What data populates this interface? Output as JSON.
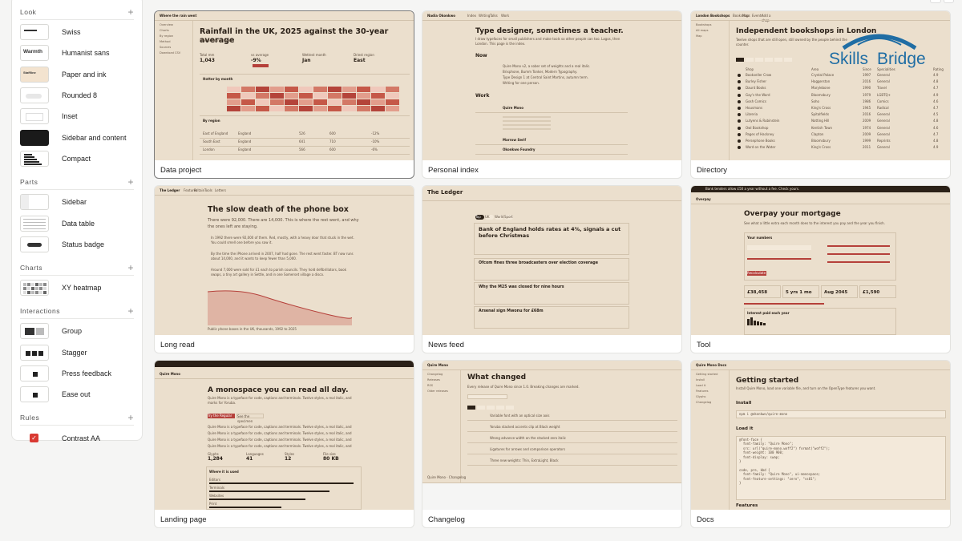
{
  "sidebar": {
    "look": {
      "title": "Look",
      "items": [
        "Swiss",
        "Humanist sans",
        "Paper and ink",
        "Rounded 8",
        "Inset",
        "Sidebar and content",
        "Compact"
      ],
      "thumb_text": [
        "",
        "Warmth",
        "Staffline",
        "",
        "",
        "",
        ""
      ]
    },
    "parts": {
      "title": "Parts",
      "items": [
        "Sidebar",
        "Data table",
        "Status badge"
      ]
    },
    "charts": {
      "title": "Charts",
      "items": [
        "XY heatmap"
      ]
    },
    "interactions": {
      "title": "Interactions",
      "items": [
        "Group",
        "Stagger",
        "Press feedback",
        "Ease out"
      ]
    },
    "rules": {
      "title": "Rules",
      "items": [
        "Contrast AA"
      ]
    }
  },
  "cards": [
    {
      "label": "Data project",
      "title": "Rainfall in the UK, 2025 against the 30-year average",
      "nav": "Where the rain went",
      "menu": [
        "Overview",
        "Charts",
        "By region",
        "Method",
        "Sources",
        "Download CSV"
      ],
      "stats": [
        {
          "k": "Total mm",
          "v": "1,043"
        },
        {
          "k": "vs average",
          "v": "-9%"
        },
        {
          "k": "Wettest month",
          "v": "Jan"
        },
        {
          "k": "Driest region",
          "v": "East"
        }
      ],
      "sub1": "Hotter by month",
      "sub2": "By region",
      "rows": [
        [
          "East of England",
          "England",
          "526",
          "600",
          "-12%"
        ],
        [
          "South East",
          "England",
          "641",
          "710",
          "-10%"
        ],
        [
          "London",
          "England",
          "566",
          "600",
          "-6%"
        ]
      ]
    },
    {
      "label": "Personal index",
      "title": "Type designer, sometimes a teacher.",
      "nav": "Nadia Okonkwo",
      "navtabs": [
        "Index",
        "Writing",
        "Talks",
        "Work"
      ],
      "intro": "I draw typefaces for small publishers and make tools so other people can too. Lagos, then London. This page is the index.",
      "h_now": "Now",
      "h_work": "Work",
      "now": [
        "Quire Mono v2, a sober set of weights and a real italic.",
        "Brixphone, Bumm Tonker, Modern Typography.",
        "Type Design 1 at Central Saint Martins, autumn term.",
        "Writing for one person."
      ],
      "work": [
        "Quire Mono",
        "Marrow Serif",
        "Okonkwo Foundry"
      ]
    },
    {
      "label": "Directory",
      "title": "Independent bookshops in London",
      "nav": "London Bookshops",
      "navtabs": [
        "Bookshops",
        "Map",
        "Events",
        "Add a shop"
      ],
      "menu": [
        "Bookshops",
        "All maps",
        "Map"
      ],
      "intro": "Twelve shops that are still open, still owned by the people behind the counter.",
      "cols": [
        "Shop",
        "Area",
        "Since",
        "Specialities",
        "Rating"
      ],
      "rows": [
        [
          "Bookseller Crow",
          "Crystal Palace",
          "1997",
          "General",
          "4.9"
        ],
        [
          "Burley Fisher",
          "Haggerston",
          "2016",
          "General",
          "4.8"
        ],
        [
          "Daunt Books",
          "Marylebone",
          "1990",
          "Travel",
          "4.7"
        ],
        [
          "Gay's the Word",
          "Bloomsbury",
          "1979",
          "LGBTQ+",
          "4.9"
        ],
        [
          "Gosh Comics",
          "Soho",
          "1986",
          "Comics",
          "4.6"
        ],
        [
          "Housmans",
          "King's Cross",
          "1945",
          "Radical",
          "4.7"
        ],
        [
          "Libreria",
          "Spitalfields",
          "2016",
          "General",
          "4.5"
        ],
        [
          "Lutyens & Rubinstein",
          "Notting Hill",
          "2009",
          "General",
          "4.8"
        ],
        [
          "Owl Bookshop",
          "Kentish Town",
          "1974",
          "General",
          "4.6"
        ],
        [
          "Pages of Hackney",
          "Clapton",
          "2009",
          "General",
          "4.7"
        ],
        [
          "Persephone Books",
          "Bloomsbury",
          "1999",
          "Reprints",
          "4.8"
        ],
        [
          "Word on the Water",
          "King's Cross",
          "2011",
          "General",
          "4.9"
        ]
      ]
    },
    {
      "label": "Long read",
      "title": "The slow death of the phone box",
      "nav": "The Ledger",
      "navtabs": [
        "Features",
        "Britain",
        "Tools",
        "Letters"
      ],
      "deck": "There were 92,000. There are 14,000. This is where the rest went, and why the ones left are staying.",
      "body": [
        "In 1992 there were 92,000 of them. Red, mostly, with a heavy door that stuck in the wet. You could smell one before you saw it.",
        "By the time the iPhone arrived in 2007, half had gone. The rest went faster. BT now runs about 14,000, and it wants to keep fewer than 5,000.",
        "Around 7,000 were sold for £1 each to parish councils. They hold defibrillators, book swaps, a tiny art gallery in Settle, and in one Somerset village a disco."
      ],
      "chart_note": "Public phone boxes in the UK, thousands, 1992 to 2025"
    },
    {
      "label": "News feed",
      "title": "Bank of England holds rates at 4%, signals a cut before Christmas",
      "nav": "The Ledger",
      "tabs": [
        "Top",
        "UK",
        "World",
        "Sport"
      ],
      "items": [
        "Ofcom fines three broadcasters over election coverage",
        "Why the M25 was closed for nine hours",
        "Arsenal sign Mwonu for £68m"
      ]
    },
    {
      "label": "Tool",
      "title": "Overpay your mortgage",
      "nav": "Overpay",
      "banner": "Bank tenders allow £50 a year without a fee. Check yours.",
      "intro": "See what a little extra each month does to the interest you pay and the year you finish.",
      "h_num": "Your numbers",
      "btn": "Recalculate",
      "results": [
        {
          "v": "£38,458",
          "k": "Interest saved"
        },
        {
          "v": "5 yrs 1 mo",
          "k": "Paid off sooner"
        },
        {
          "v": "Aug 2045",
          "k": "New end date"
        },
        {
          "v": "£1,590",
          "k": "Monthly total"
        }
      ],
      "h_int": "Interest paid each year"
    },
    {
      "label": "Landing page",
      "title": "A monospace you can read all day.",
      "nav": "Quire Mono",
      "intro": "Quire Mono is a typeface for code, captions and terminals. Twelve styles, a real italic, and marks for Yoruba.",
      "btns": [
        "Try the Regular",
        "See the specimen"
      ],
      "stats": [
        {
          "k": "Glyphs",
          "v": "1,284"
        },
        {
          "k": "Languages",
          "v": "41"
        },
        {
          "k": "Styles",
          "v": "12"
        },
        {
          "k": "File size",
          "v": "80 KB"
        }
      ],
      "h_used": "Where it is used",
      "used": [
        "Editors",
        "Terminals",
        "Websites",
        "Print"
      ]
    },
    {
      "label": "Changelog",
      "title": "What changed",
      "nav": "Quire Mono",
      "menu": [
        "Changelog",
        "Releases",
        "RSS",
        "Older releases"
      ],
      "intro": "Every release of Quire Mono since 1.0. Breaking changes are marked.",
      "entries": [
        "Variable font with an optical size axis",
        "Yoruba stacked accents clip at Black weight",
        "Wrong advance width on the stacked zero italic",
        "Ligatures for arrows and comparison operators",
        "Three new weights: Thin, ExtraLight, Black"
      ],
      "footer": "Quire Mono · Changelog"
    },
    {
      "label": "Docs",
      "title": "Getting started",
      "nav": "Quire Mono Docs",
      "menu": [
        "Getting started",
        "Install",
        "Load it",
        "Features",
        "Glyphs",
        "Changelog"
      ],
      "intro": "Install Quire Mono, load one variable file, and turn on the OpenType features you want.",
      "h_install": "Install",
      "cmd": "npm i @okonkwo/quire-mono",
      "h_load": "Load it",
      "code": "@font-face {\n  font-family: \"Quire Mono\";\n  src: url(\"quire-mono.woff2\") format(\"woff2\");\n  font-weight: 100 900;\n  font-display: swap;\n}\n\ncode, pre, kbd {\n  font-family: \"Quire Mono\", ui-monospace;\n  font-feature-settings: \"zero\", \"ss01\";\n}",
      "h_feat": "Features"
    }
  ],
  "colors": {
    "paper": "#ebdfcd",
    "ink": "#2b2118",
    "accent": "#b5403a"
  }
}
